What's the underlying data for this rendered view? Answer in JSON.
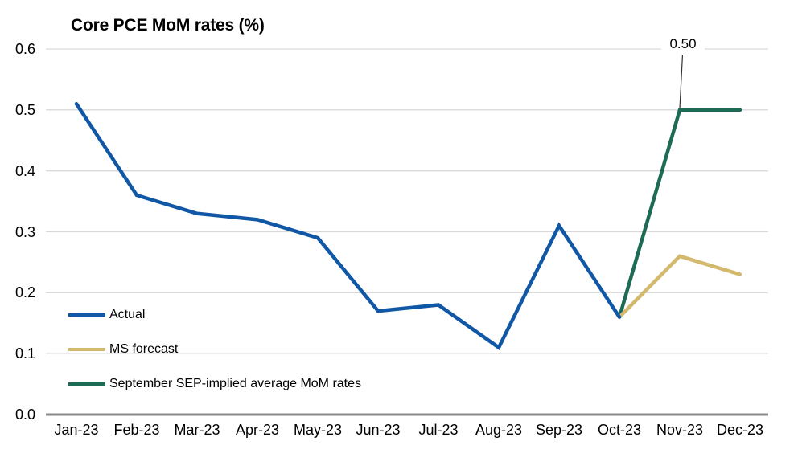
{
  "chart_data": {
    "type": "line",
    "title": "Core PCE MoM rates (%)",
    "xlabel": "",
    "ylabel": "",
    "ylim": [
      0.0,
      0.6
    ],
    "grid": "horizontal",
    "legend_position": "inside-bottom-left",
    "categories": [
      "Jan-23",
      "Feb-23",
      "Mar-23",
      "Apr-23",
      "May-23",
      "Jun-23",
      "Jul-23",
      "Aug-23",
      "Sep-23",
      "Oct-23",
      "Nov-23",
      "Dec-23"
    ],
    "y_ticks": [
      "0.6",
      "0.5",
      "0.4",
      "0.3",
      "0.2",
      "0.1",
      "0.0"
    ],
    "series": [
      {
        "name": "Actual",
        "color": "#1057a5",
        "x_start_index": 0,
        "values": [
          0.51,
          0.36,
          0.33,
          0.32,
          0.29,
          0.17,
          0.18,
          0.11,
          0.31,
          0.16
        ]
      },
      {
        "name": "MS forecast",
        "color": "#d2b96e",
        "x_start_index": 9,
        "values": [
          0.16,
          0.26,
          0.23
        ]
      },
      {
        "name": "September SEP-implied average MoM rates",
        "color": "#1e6b55",
        "x_start_index": 9,
        "values": [
          0.16,
          0.5,
          0.5
        ]
      }
    ],
    "annotation": {
      "text": "0.50",
      "target_series": "September SEP-implied average MoM rates",
      "target_category": "Nov-23",
      "value": 0.5
    }
  },
  "colors": {
    "gridline": "#d9d9d9",
    "axis_line": "#8a8a8a",
    "annotation_line": "#333333",
    "text": "#000000",
    "background": "#ffffff"
  }
}
